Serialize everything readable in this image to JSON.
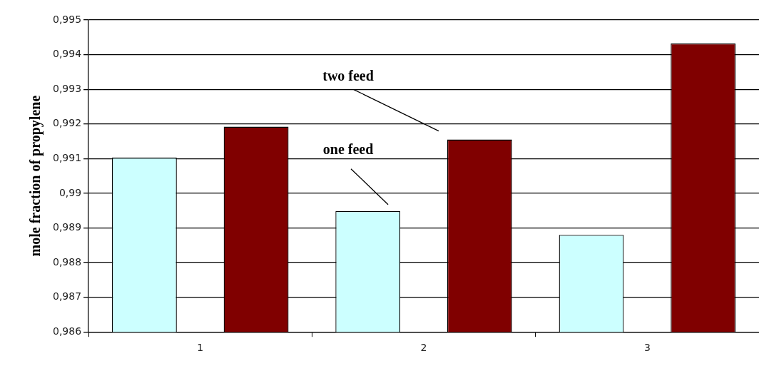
{
  "chart_data": {
    "type": "bar",
    "ylabel": "mole fraction of propylene",
    "categories": [
      "1",
      "2",
      "3"
    ],
    "series": [
      {
        "color": "#ccffff",
        "values": [
          0.99103,
          0.98949,
          0.9888
        ]
      },
      {
        "color": "#800000",
        "values": [
          0.99192,
          0.99155,
          0.99432
        ]
      }
    ],
    "annotations": [
      "one feed",
      "two feed"
    ],
    "ylim": [
      0.986,
      0.995
    ],
    "yticks": [
      {
        "value": 0.986,
        "label": "0,986"
      },
      {
        "value": 0.987,
        "label": "0,987"
      },
      {
        "value": 0.988,
        "label": "0,988"
      },
      {
        "value": 0.989,
        "label": "0,989"
      },
      {
        "value": 0.99,
        "label": "0,99"
      },
      {
        "value": 0.991,
        "label": "0,991"
      },
      {
        "value": 0.992,
        "label": "0,992"
      },
      {
        "value": 0.993,
        "label": "0,993"
      },
      {
        "value": 0.994,
        "label": "0,994"
      },
      {
        "value": 0.995,
        "label": "0,995"
      }
    ],
    "grid": "y",
    "legend": false
  }
}
